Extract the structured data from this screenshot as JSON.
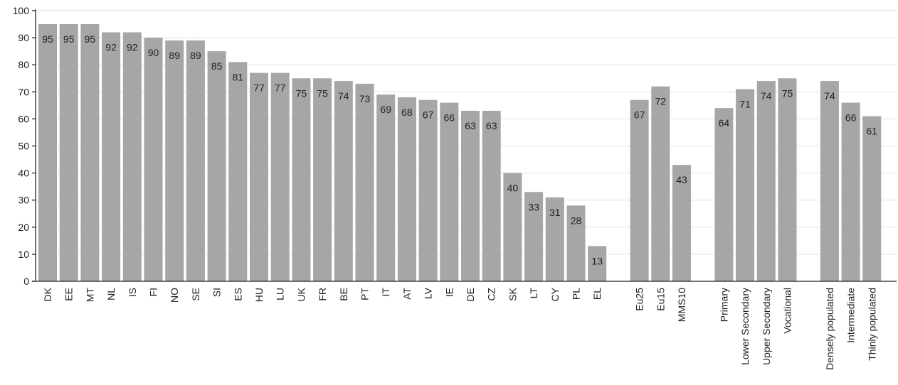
{
  "chart_data": {
    "type": "bar",
    "title": "",
    "xlabel": "",
    "ylabel": "",
    "ylim": [
      0,
      100
    ],
    "yticks": [
      0,
      10,
      20,
      30,
      40,
      50,
      60,
      70,
      80,
      90,
      100
    ],
    "grid": true,
    "bar_color": "#a6a6a6",
    "groups": [
      {
        "categories": [
          "DK",
          "EE",
          "MT",
          "NL",
          "IS",
          "FI",
          "NO",
          "SE",
          "SI",
          "ES",
          "HU",
          "LU",
          "UK",
          "FR",
          "BE",
          "PT",
          "IT",
          "AT",
          "LV",
          "IE",
          "DE",
          "CZ",
          "SK",
          "LT",
          "CY",
          "PL",
          "EL"
        ],
        "values": [
          95,
          95,
          95,
          92,
          92,
          90,
          89,
          89,
          85,
          81,
          77,
          77,
          75,
          75,
          74,
          73,
          69,
          68,
          67,
          66,
          63,
          63,
          40,
          33,
          31,
          28,
          13
        ]
      },
      {
        "categories": [
          "Eu25",
          "Eu15",
          "MMS10"
        ],
        "values": [
          67,
          72,
          43
        ]
      },
      {
        "categories": [
          "Primary",
          "Lower Secondary",
          "Upper Secondary",
          "Vocational"
        ],
        "values": [
          64,
          71,
          74,
          75
        ]
      },
      {
        "categories": [
          "Densely populated",
          "Intermediate",
          "Thinly populated"
        ],
        "values": [
          74,
          66,
          61
        ]
      }
    ]
  }
}
